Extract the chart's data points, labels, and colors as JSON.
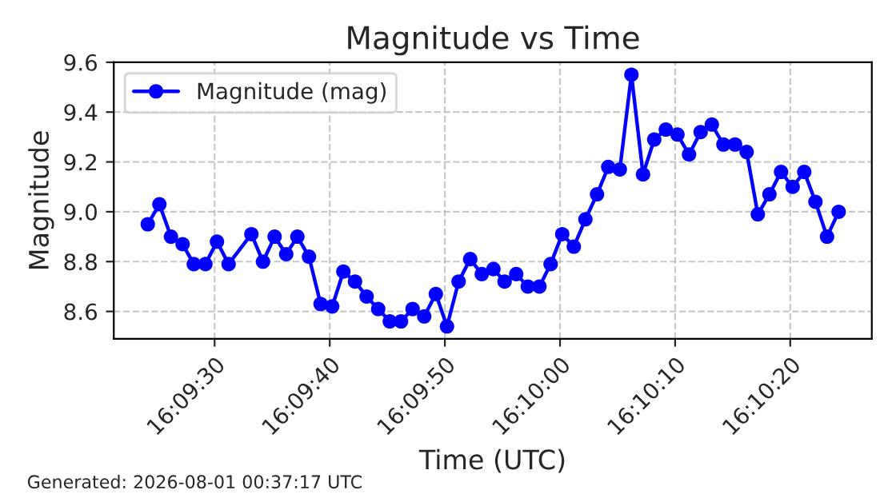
{
  "chart_data": {
    "type": "line",
    "title": "Magnitude vs Time",
    "xlabel": "Time (UTC)",
    "ylabel": "Magnitude",
    "annotations": [
      "Generated: 2026-08-01 00:37:17 UTC"
    ],
    "x": [
      16.15672,
      16.157,
      16.15728,
      16.15756,
      16.15783,
      16.15811,
      16.15839,
      16.15867,
      16.15922,
      16.1595,
      16.15978,
      16.16006,
      16.16033,
      16.16061,
      16.16089,
      16.16117,
      16.16144,
      16.16172,
      16.162,
      16.16228,
      16.16256,
      16.16283,
      16.16311,
      16.16339,
      16.16367,
      16.16394,
      16.16422,
      16.1645,
      16.16478,
      16.16506,
      16.16533,
      16.16561,
      16.16589,
      16.16617,
      16.16644,
      16.16672,
      16.167,
      16.16728,
      16.16756,
      16.16783,
      16.16811,
      16.16839,
      16.16867,
      16.16894,
      16.16922,
      16.1695,
      16.16978,
      16.17006,
      16.17033,
      16.17061,
      16.17089,
      16.17117,
      16.17144,
      16.17172,
      16.172,
      16.17228,
      16.17256,
      16.17283,
      16.17311,
      16.17339
    ],
    "series": [
      {
        "name": "Magnitude (mag)",
        "color": "#0000ff",
        "values": [
          8.95,
          9.03,
          8.9,
          8.87,
          8.79,
          8.79,
          8.88,
          8.79,
          8.91,
          8.8,
          8.9,
          8.83,
          8.9,
          8.82,
          8.63,
          8.62,
          8.76,
          8.72,
          8.66,
          8.61,
          8.56,
          8.56,
          8.61,
          8.58,
          8.67,
          8.54,
          8.72,
          8.81,
          8.75,
          8.77,
          8.72,
          8.75,
          8.7,
          8.7,
          8.79,
          8.91,
          8.86,
          8.97,
          9.07,
          9.18,
          9.17,
          9.55,
          9.15,
          9.29,
          9.33,
          9.31,
          9.23,
          9.32,
          9.35,
          9.27,
          9.27,
          9.24,
          8.99,
          9.07,
          9.16,
          9.1,
          9.16,
          9.04,
          8.9,
          9.0
        ]
      }
    ],
    "xlim": [
      16.1559,
      16.17419
    ],
    "xticks": [
      {
        "value": 16.158333,
        "label": "16:09:30"
      },
      {
        "value": 16.161111,
        "label": "16:09:40"
      },
      {
        "value": 16.163889,
        "label": "16:09:50"
      },
      {
        "value": 16.166667,
        "label": "16:10:00"
      },
      {
        "value": 16.169444,
        "label": "16:10:10"
      },
      {
        "value": 16.172222,
        "label": "16:10:20"
      }
    ],
    "ylim": [
      8.49,
      9.6
    ],
    "yticks": [
      {
        "value": 8.6,
        "label": "8.6"
      },
      {
        "value": 8.8,
        "label": "8.8"
      },
      {
        "value": 9.0,
        "label": "9.0"
      },
      {
        "value": 9.2,
        "label": "9.2"
      },
      {
        "value": 9.4,
        "label": "9.4"
      },
      {
        "value": 9.6,
        "label": "9.6"
      }
    ],
    "grid": true,
    "legend": "top left",
    "marker": "circle",
    "line_style": "solid"
  }
}
